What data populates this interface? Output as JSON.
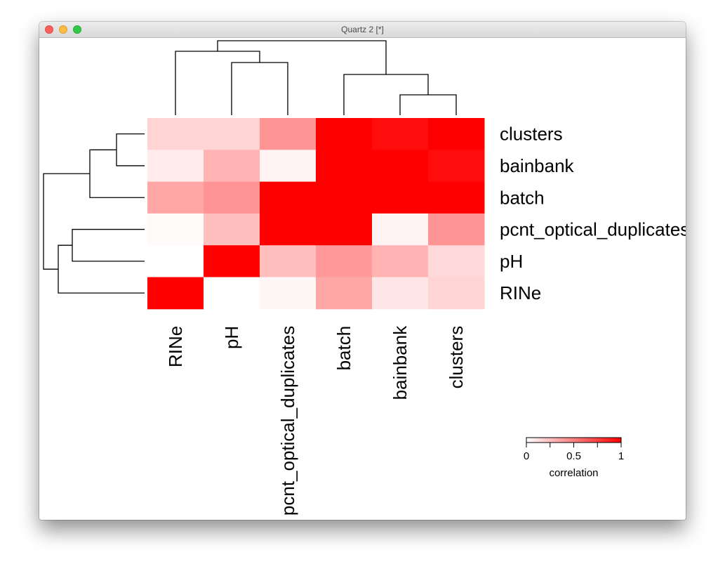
{
  "window": {
    "title": "Quartz 2 [*]"
  },
  "chart_data": {
    "type": "heatmap",
    "rows": [
      "clusters",
      "bainbank",
      "batch",
      "pcnt_optical_duplicates",
      "pH",
      "RINe"
    ],
    "columns": [
      "RINe",
      "pH",
      "pcnt_optical_duplicates",
      "batch",
      "bainbank",
      "clusters"
    ],
    "values": [
      [
        0.17,
        0.17,
        0.42,
        1.0,
        0.95,
        1.0
      ],
      [
        0.08,
        0.3,
        0.05,
        1.0,
        1.0,
        0.95
      ],
      [
        0.35,
        0.42,
        1.0,
        1.0,
        1.0,
        1.0
      ],
      [
        0.02,
        0.25,
        1.0,
        1.0,
        0.05,
        0.42
      ],
      [
        0.0,
        1.0,
        0.25,
        0.4,
        0.3,
        0.15
      ],
      [
        1.0,
        0.0,
        0.03,
        0.35,
        0.1,
        0.17
      ]
    ],
    "colorscale": {
      "low": "#ffffff",
      "high": "#ff0000",
      "range": [
        0,
        1
      ]
    },
    "legend": {
      "title": "correlation",
      "ticks": [
        "0",
        "0.5",
        "1"
      ],
      "placement": "bottom-right"
    },
    "row_dendrogram": "left",
    "column_dendrogram": "top"
  }
}
